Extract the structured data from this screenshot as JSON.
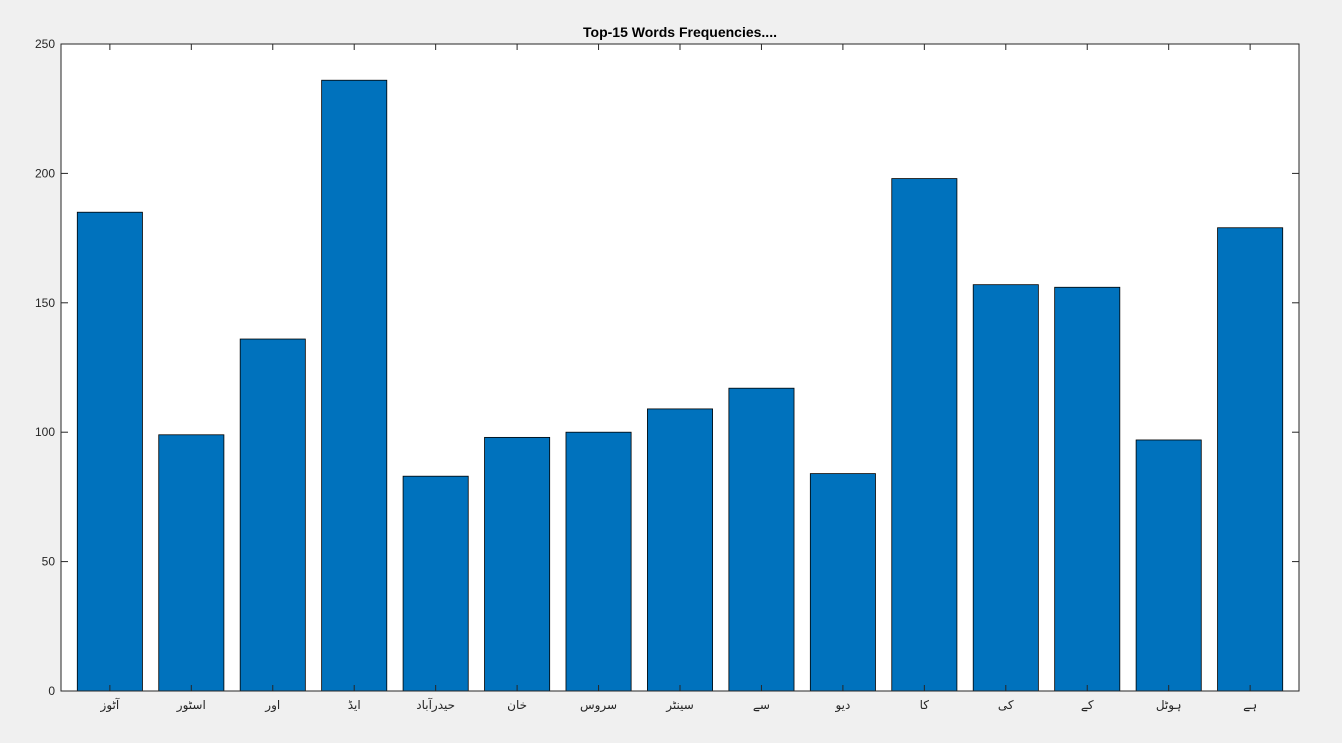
{
  "chart_data": {
    "type": "bar",
    "title": "Top-15 Words Frequencies....",
    "xlabel": "",
    "ylabel": "",
    "categories": [
      "آٹوز",
      "اسٹور",
      "اور",
      "ایڈ",
      "حیدرآباد",
      "خان",
      "سروس",
      "سینٹر",
      "سے",
      "دیو",
      "کا",
      "کی",
      "کے",
      "ہوٹل",
      "ہے"
    ],
    "values": [
      185,
      99,
      136,
      236,
      83,
      98,
      100,
      109,
      117,
      84,
      198,
      157,
      156,
      97,
      179
    ],
    "ylim": [
      0,
      250
    ],
    "yticks": [
      0,
      50,
      100,
      150,
      200,
      250
    ],
    "bar_color": "#0072bd",
    "bar_edge_color": "#000000",
    "plot_background": "#ffffff",
    "figure_background": "#f0f0f0",
    "grid": false,
    "legend": "none"
  }
}
